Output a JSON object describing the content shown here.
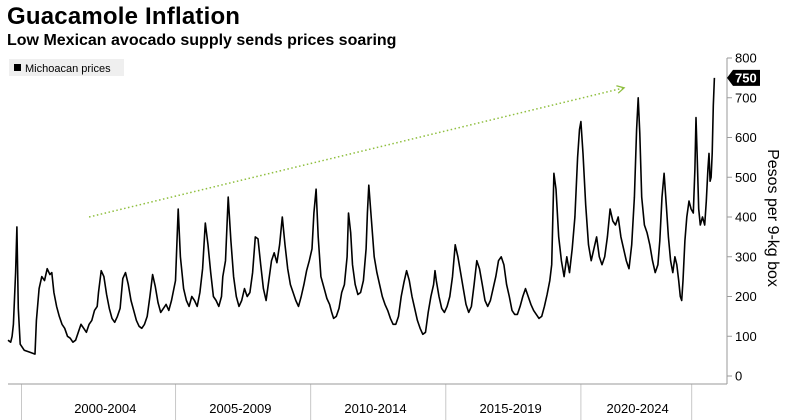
{
  "header": {
    "title": "Guacamole Inflation",
    "subtitle": "Low Mexican avocado supply sends prices soaring"
  },
  "chart_data": {
    "type": "line",
    "title": "Guacamole Inflation",
    "subtitle": "Low Mexican avocado supply sends prices soaring",
    "ylabel": "Pesos per 9-kg box",
    "xlabel": "",
    "ylim": [
      0,
      800
    ],
    "xlim": [
      1998.0,
      2024.2
    ],
    "y_ticks": [
      0,
      100,
      200,
      300,
      400,
      500,
      600,
      700,
      800
    ],
    "x_tick_labels": [
      {
        "label": "2000-2004",
        "x": 2001.6
      },
      {
        "label": "2005-2009",
        "x": 2006.6
      },
      {
        "label": "2010-2014",
        "x": 2011.6
      },
      {
        "label": "2015-2019",
        "x": 2016.6
      },
      {
        "label": "2020-2024",
        "x": 2021.3
      }
    ],
    "x_separators": [
      1998.5,
      2004.2,
      2009.2,
      2014.2,
      2019.2,
      2023.3
    ],
    "legend": {
      "label": "Michoacan prices",
      "position": "top-left"
    },
    "last_value_label": "750",
    "trend_arrow": {
      "from": {
        "x": 2001.0,
        "y": 400
      },
      "to": {
        "x": 2020.8,
        "y": 725
      },
      "color": "#8fbf3f"
    },
    "series": [
      {
        "name": "Michoacan prices",
        "color": "#000000",
        "points": [
          [
            1998.0,
            90
          ],
          [
            1998.1,
            85
          ],
          [
            1998.15,
            100
          ],
          [
            1998.2,
            130
          ],
          [
            1998.28,
            260
          ],
          [
            1998.33,
            375
          ],
          [
            1998.38,
            170
          ],
          [
            1998.45,
            80
          ],
          [
            1998.6,
            65
          ],
          [
            1998.8,
            60
          ],
          [
            1999.0,
            55
          ],
          [
            1999.05,
            140
          ],
          [
            1999.15,
            220
          ],
          [
            1999.25,
            250
          ],
          [
            1999.35,
            240
          ],
          [
            1999.45,
            270
          ],
          [
            1999.55,
            255
          ],
          [
            1999.62,
            260
          ],
          [
            1999.7,
            210
          ],
          [
            1999.8,
            175
          ],
          [
            1999.9,
            150
          ],
          [
            2000.0,
            130
          ],
          [
            2000.1,
            120
          ],
          [
            2000.2,
            100
          ],
          [
            2000.3,
            95
          ],
          [
            2000.4,
            85
          ],
          [
            2000.5,
            90
          ],
          [
            2000.6,
            110
          ],
          [
            2000.7,
            130
          ],
          [
            2000.8,
            120
          ],
          [
            2000.9,
            110
          ],
          [
            2001.0,
            130
          ],
          [
            2001.1,
            140
          ],
          [
            2001.2,
            165
          ],
          [
            2001.3,
            175
          ],
          [
            2001.35,
            210
          ],
          [
            2001.45,
            265
          ],
          [
            2001.55,
            250
          ],
          [
            2001.65,
            205
          ],
          [
            2001.75,
            170
          ],
          [
            2001.85,
            145
          ],
          [
            2001.95,
            135
          ],
          [
            2002.05,
            150
          ],
          [
            2002.15,
            170
          ],
          [
            2002.25,
            245
          ],
          [
            2002.35,
            260
          ],
          [
            2002.45,
            230
          ],
          [
            2002.55,
            190
          ],
          [
            2002.65,
            165
          ],
          [
            2002.75,
            140
          ],
          [
            2002.85,
            125
          ],
          [
            2002.95,
            120
          ],
          [
            2003.05,
            130
          ],
          [
            2003.15,
            150
          ],
          [
            2003.25,
            200
          ],
          [
            2003.35,
            255
          ],
          [
            2003.45,
            225
          ],
          [
            2003.55,
            185
          ],
          [
            2003.65,
            160
          ],
          [
            2003.75,
            170
          ],
          [
            2003.85,
            180
          ],
          [
            2003.95,
            165
          ],
          [
            2004.05,
            190
          ],
          [
            2004.2,
            240
          ],
          [
            2004.3,
            420
          ],
          [
            2004.38,
            300
          ],
          [
            2004.5,
            220
          ],
          [
            2004.6,
            190
          ],
          [
            2004.7,
            175
          ],
          [
            2004.8,
            200
          ],
          [
            2004.9,
            190
          ],
          [
            2005.0,
            175
          ],
          [
            2005.1,
            210
          ],
          [
            2005.2,
            270
          ],
          [
            2005.3,
            385
          ],
          [
            2005.4,
            330
          ],
          [
            2005.5,
            260
          ],
          [
            2005.6,
            200
          ],
          [
            2005.7,
            190
          ],
          [
            2005.8,
            175
          ],
          [
            2005.9,
            200
          ],
          [
            2005.95,
            250
          ],
          [
            2006.05,
            290
          ],
          [
            2006.15,
            450
          ],
          [
            2006.25,
            340
          ],
          [
            2006.35,
            250
          ],
          [
            2006.45,
            200
          ],
          [
            2006.55,
            175
          ],
          [
            2006.65,
            190
          ],
          [
            2006.75,
            220
          ],
          [
            2006.85,
            200
          ],
          [
            2006.95,
            210
          ],
          [
            2007.05,
            260
          ],
          [
            2007.15,
            350
          ],
          [
            2007.25,
            345
          ],
          [
            2007.35,
            280
          ],
          [
            2007.45,
            220
          ],
          [
            2007.55,
            190
          ],
          [
            2007.65,
            240
          ],
          [
            2007.75,
            290
          ],
          [
            2007.85,
            310
          ],
          [
            2007.95,
            285
          ],
          [
            2008.05,
            330
          ],
          [
            2008.15,
            400
          ],
          [
            2008.25,
            330
          ],
          [
            2008.35,
            270
          ],
          [
            2008.45,
            230
          ],
          [
            2008.55,
            210
          ],
          [
            2008.65,
            190
          ],
          [
            2008.75,
            175
          ],
          [
            2008.85,
            200
          ],
          [
            2008.95,
            230
          ],
          [
            2009.05,
            265
          ],
          [
            2009.15,
            290
          ],
          [
            2009.25,
            320
          ],
          [
            2009.32,
            410
          ],
          [
            2009.4,
            470
          ],
          [
            2009.48,
            350
          ],
          [
            2009.58,
            250
          ],
          [
            2009.7,
            220
          ],
          [
            2009.8,
            195
          ],
          [
            2009.9,
            180
          ],
          [
            2009.98,
            160
          ],
          [
            2010.05,
            145
          ],
          [
            2010.15,
            150
          ],
          [
            2010.25,
            170
          ],
          [
            2010.35,
            210
          ],
          [
            2010.45,
            230
          ],
          [
            2010.55,
            300
          ],
          [
            2010.6,
            410
          ],
          [
            2010.68,
            360
          ],
          [
            2010.75,
            280
          ],
          [
            2010.85,
            230
          ],
          [
            2010.95,
            205
          ],
          [
            2011.05,
            210
          ],
          [
            2011.15,
            240
          ],
          [
            2011.25,
            320
          ],
          [
            2011.3,
            410
          ],
          [
            2011.35,
            480
          ],
          [
            2011.45,
            390
          ],
          [
            2011.55,
            300
          ],
          [
            2011.65,
            260
          ],
          [
            2011.75,
            230
          ],
          [
            2011.85,
            200
          ],
          [
            2011.95,
            180
          ],
          [
            2012.05,
            165
          ],
          [
            2012.15,
            145
          ],
          [
            2012.25,
            130
          ],
          [
            2012.35,
            130
          ],
          [
            2012.45,
            150
          ],
          [
            2012.55,
            200
          ],
          [
            2012.65,
            235
          ],
          [
            2012.75,
            265
          ],
          [
            2012.85,
            240
          ],
          [
            2012.95,
            200
          ],
          [
            2013.05,
            170
          ],
          [
            2013.15,
            140
          ],
          [
            2013.25,
            120
          ],
          [
            2013.35,
            105
          ],
          [
            2013.45,
            110
          ],
          [
            2013.55,
            160
          ],
          [
            2013.65,
            200
          ],
          [
            2013.75,
            230
          ],
          [
            2013.8,
            265
          ],
          [
            2013.85,
            240
          ],
          [
            2013.95,
            200
          ],
          [
            2014.05,
            170
          ],
          [
            2014.15,
            160
          ],
          [
            2014.25,
            175
          ],
          [
            2014.35,
            200
          ],
          [
            2014.45,
            250
          ],
          [
            2014.55,
            330
          ],
          [
            2014.65,
            300
          ],
          [
            2014.75,
            260
          ],
          [
            2014.85,
            220
          ],
          [
            2014.95,
            180
          ],
          [
            2015.05,
            160
          ],
          [
            2015.15,
            175
          ],
          [
            2015.25,
            230
          ],
          [
            2015.35,
            290
          ],
          [
            2015.45,
            270
          ],
          [
            2015.55,
            230
          ],
          [
            2015.65,
            190
          ],
          [
            2015.75,
            175
          ],
          [
            2015.85,
            190
          ],
          [
            2015.95,
            220
          ],
          [
            2016.05,
            250
          ],
          [
            2016.15,
            290
          ],
          [
            2016.25,
            300
          ],
          [
            2016.35,
            280
          ],
          [
            2016.45,
            230
          ],
          [
            2016.55,
            200
          ],
          [
            2016.65,
            165
          ],
          [
            2016.75,
            155
          ],
          [
            2016.85,
            155
          ],
          [
            2016.95,
            175
          ],
          [
            2017.05,
            200
          ],
          [
            2017.15,
            220
          ],
          [
            2017.25,
            200
          ],
          [
            2017.35,
            180
          ],
          [
            2017.45,
            165
          ],
          [
            2017.55,
            155
          ],
          [
            2017.65,
            145
          ],
          [
            2017.75,
            150
          ],
          [
            2017.85,
            175
          ],
          [
            2017.95,
            205
          ],
          [
            2018.05,
            240
          ],
          [
            2018.12,
            280
          ],
          [
            2018.2,
            510
          ],
          [
            2018.28,
            470
          ],
          [
            2018.38,
            350
          ],
          [
            2018.48,
            290
          ],
          [
            2018.58,
            250
          ],
          [
            2018.68,
            300
          ],
          [
            2018.78,
            260
          ],
          [
            2018.88,
            320
          ],
          [
            2018.98,
            400
          ],
          [
            2019.08,
            550
          ],
          [
            2019.15,
            620
          ],
          [
            2019.2,
            640
          ],
          [
            2019.28,
            560
          ],
          [
            2019.38,
            430
          ],
          [
            2019.48,
            330
          ],
          [
            2019.58,
            290
          ],
          [
            2019.68,
            320
          ],
          [
            2019.78,
            350
          ],
          [
            2019.88,
            300
          ],
          [
            2019.98,
            280
          ],
          [
            2020.08,
            300
          ],
          [
            2020.18,
            350
          ],
          [
            2020.28,
            420
          ],
          [
            2020.38,
            390
          ],
          [
            2020.48,
            380
          ],
          [
            2020.58,
            400
          ],
          [
            2020.68,
            350
          ],
          [
            2020.78,
            320
          ],
          [
            2020.88,
            290
          ],
          [
            2020.98,
            270
          ],
          [
            2021.08,
            330
          ],
          [
            2021.18,
            450
          ],
          [
            2021.26,
            620
          ],
          [
            2021.32,
            700
          ],
          [
            2021.38,
            610
          ],
          [
            2021.45,
            450
          ],
          [
            2021.55,
            380
          ],
          [
            2021.65,
            360
          ],
          [
            2021.75,
            330
          ],
          [
            2021.85,
            290
          ],
          [
            2021.95,
            260
          ],
          [
            2022.05,
            280
          ],
          [
            2022.12,
            340
          ],
          [
            2022.2,
            450
          ],
          [
            2022.28,
            510
          ],
          [
            2022.36,
            430
          ],
          [
            2022.44,
            350
          ],
          [
            2022.52,
            290
          ],
          [
            2022.6,
            260
          ],
          [
            2022.68,
            300
          ],
          [
            2022.75,
            280
          ],
          [
            2022.82,
            240
          ],
          [
            2022.88,
            200
          ],
          [
            2022.93,
            190
          ],
          [
            2022.98,
            240
          ],
          [
            2023.05,
            340
          ],
          [
            2023.12,
            400
          ],
          [
            2023.2,
            440
          ],
          [
            2023.28,
            420
          ],
          [
            2023.36,
            410
          ],
          [
            2023.42,
            520
          ],
          [
            2023.46,
            650
          ],
          [
            2023.5,
            560
          ],
          [
            2023.56,
            420
          ],
          [
            2023.62,
            380
          ],
          [
            2023.7,
            400
          ],
          [
            2023.78,
            380
          ],
          [
            2023.84,
            440
          ],
          [
            2023.9,
            520
          ],
          [
            2023.94,
            560
          ],
          [
            2023.98,
            490
          ],
          [
            2024.02,
            500
          ],
          [
            2024.06,
            560
          ],
          [
            2024.1,
            680
          ],
          [
            2024.14,
            750
          ]
        ]
      }
    ]
  }
}
